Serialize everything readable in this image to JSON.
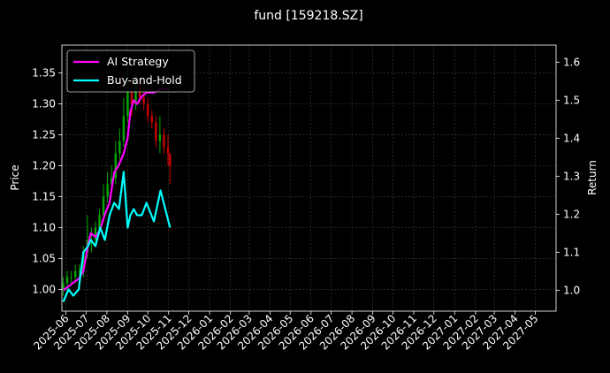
{
  "chart_data": {
    "type": "line",
    "title": "fund [159218.SZ]",
    "ylabel_left": "Price",
    "ylabel_right": "Return",
    "ylim_left": [
      0.965,
      1.395
    ],
    "ylim_right": [
      0.945,
      1.645
    ],
    "left_ticks": [
      "1.00",
      "1.05",
      "1.10",
      "1.15",
      "1.20",
      "1.25",
      "1.30",
      "1.35"
    ],
    "right_ticks": [
      "1.0",
      "1.1",
      "1.2",
      "1.3",
      "1.4",
      "1.5",
      "1.6"
    ],
    "x_tick_labels": [
      "2025-06",
      "2025-07",
      "2025-08",
      "2025-09",
      "2025-10",
      "2025-11",
      "2025-12",
      "2026-01",
      "2026-02",
      "2026-03",
      "2026-04",
      "2026-05",
      "2026-06",
      "2026-07",
      "2026-08",
      "2026-09",
      "2026-10",
      "2026-11",
      "2026-12",
      "2027-01",
      "2027-02",
      "2027-03",
      "2027-04",
      "2027-05"
    ],
    "grid": true,
    "legend_position": "top-left",
    "colors": {
      "background": "#000000",
      "ai": "#ff00ff",
      "bh": "#00ffff",
      "up": "#00aa00",
      "down": "#cc0000"
    },
    "series": [
      {
        "name": "AI Strategy",
        "axis": "right",
        "x": [
          "2025-05-28",
          "2025-06-05",
          "2025-06-12",
          "2025-06-20",
          "2025-06-27",
          "2025-07-04",
          "2025-07-08",
          "2025-07-15",
          "2025-07-22",
          "2025-07-29",
          "2025-08-05",
          "2025-08-12",
          "2025-08-19",
          "2025-08-26",
          "2025-09-01",
          "2025-09-05",
          "2025-09-10",
          "2025-09-15",
          "2025-09-22",
          "2025-09-29",
          "2025-10-10",
          "2025-10-20",
          "2025-10-27",
          "2025-11-03"
        ],
        "values": [
          1.0,
          1.01,
          1.02,
          1.03,
          1.05,
          1.12,
          1.15,
          1.14,
          1.16,
          1.2,
          1.23,
          1.31,
          1.33,
          1.36,
          1.4,
          1.47,
          1.5,
          1.49,
          1.51,
          1.52,
          1.52,
          1.53,
          1.53,
          1.53
        ]
      },
      {
        "name": "Buy-and-Hold",
        "axis": "left",
        "x": [
          "2025-05-28",
          "2025-06-05",
          "2025-06-12",
          "2025-06-20",
          "2025-06-27",
          "2025-07-04",
          "2025-07-08",
          "2025-07-15",
          "2025-07-22",
          "2025-07-29",
          "2025-08-05",
          "2025-08-12",
          "2025-08-19",
          "2025-08-26",
          "2025-09-01",
          "2025-09-05",
          "2025-09-10",
          "2025-09-15",
          "2025-09-22",
          "2025-09-29",
          "2025-10-10",
          "2025-10-20",
          "2025-10-27",
          "2025-11-03"
        ],
        "values": [
          0.98,
          1.0,
          0.99,
          1.0,
          1.06,
          1.07,
          1.08,
          1.07,
          1.1,
          1.08,
          1.12,
          1.14,
          1.13,
          1.19,
          1.1,
          1.12,
          1.13,
          1.12,
          1.12,
          1.14,
          1.11,
          1.16,
          1.13,
          1.1
        ]
      }
    ],
    "candles": {
      "axis": "left",
      "x": [
        "2025-05-28",
        "2025-06-03",
        "2025-06-09",
        "2025-06-15",
        "2025-06-21",
        "2025-06-27",
        "2025-07-03",
        "2025-07-09",
        "2025-07-15",
        "2025-07-21",
        "2025-07-27",
        "2025-08-02",
        "2025-08-08",
        "2025-08-14",
        "2025-08-20",
        "2025-08-26",
        "2025-09-01",
        "2025-09-07",
        "2025-09-13",
        "2025-09-19",
        "2025-09-25",
        "2025-10-01",
        "2025-10-07",
        "2025-10-13",
        "2025-10-19",
        "2025-10-25",
        "2025-10-31",
        "2025-11-03"
      ],
      "open": [
        1.0,
        1.01,
        1.02,
        1.02,
        1.03,
        1.03,
        1.06,
        1.08,
        1.08,
        1.1,
        1.12,
        1.15,
        1.17,
        1.18,
        1.22,
        1.24,
        1.28,
        1.32,
        1.3,
        1.33,
        1.31,
        1.3,
        1.28,
        1.27,
        1.24,
        1.25,
        1.23,
        1.22
      ],
      "close": [
        1.01,
        1.02,
        1.02,
        1.03,
        1.03,
        1.06,
        1.08,
        1.08,
        1.1,
        1.12,
        1.15,
        1.17,
        1.18,
        1.22,
        1.24,
        1.28,
        1.32,
        1.3,
        1.33,
        1.31,
        1.3,
        1.28,
        1.27,
        1.24,
        1.25,
        1.23,
        1.22,
        1.2
      ],
      "high": [
        1.02,
        1.03,
        1.03,
        1.04,
        1.04,
        1.07,
        1.12,
        1.1,
        1.11,
        1.13,
        1.17,
        1.19,
        1.2,
        1.24,
        1.26,
        1.31,
        1.36,
        1.34,
        1.35,
        1.34,
        1.32,
        1.31,
        1.29,
        1.28,
        1.28,
        1.26,
        1.25,
        1.22
      ],
      "low": [
        0.99,
        1.0,
        1.01,
        1.01,
        1.02,
        1.02,
        1.05,
        1.06,
        1.07,
        1.09,
        1.11,
        1.14,
        1.16,
        1.17,
        1.21,
        1.23,
        1.27,
        1.28,
        1.29,
        1.3,
        1.29,
        1.27,
        1.26,
        1.23,
        1.22,
        1.22,
        1.2,
        1.17
      ]
    }
  }
}
